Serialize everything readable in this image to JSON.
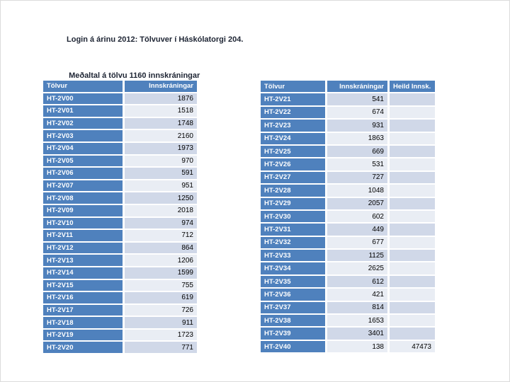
{
  "title": {
    "line1": "Login á árinu 2012: Tölvuver í Háskólatorgi 204.",
    "line2": " Meðaltal á tölvu 1160 innskráningar"
  },
  "colors": {
    "accent_blue": "#4F81BD",
    "band_dark": "#D0D8E8",
    "band_light": "#E9EDF4",
    "header_text": "#FFFFFF",
    "value_text": "#000000",
    "title_text": "#1D2433"
  },
  "left_table": {
    "columns": [
      "Tölvur",
      "Innskráningar"
    ],
    "rows": [
      [
        "HT-2V00",
        "1876"
      ],
      [
        "HT-2V01",
        "1518"
      ],
      [
        "HT-2V02",
        "1748"
      ],
      [
        "HT-2V03",
        "2160"
      ],
      [
        "HT-2V04",
        "1973"
      ],
      [
        "HT-2V05",
        "970"
      ],
      [
        "HT-2V06",
        "591"
      ],
      [
        "HT-2V07",
        "951"
      ],
      [
        "HT-2V08",
        "1250"
      ],
      [
        "HT-2V09",
        "2018"
      ],
      [
        "HT-2V10",
        "974"
      ],
      [
        "HT-2V11",
        "712"
      ],
      [
        "HT-2V12",
        "864"
      ],
      [
        "HT-2V13",
        "1206"
      ],
      [
        "HT-2V14",
        "1599"
      ],
      [
        "HT-2V15",
        "755"
      ],
      [
        "HT-2V16",
        "619"
      ],
      [
        "HT-2V17",
        "726"
      ],
      [
        "HT-2V18",
        "911"
      ],
      [
        "HT-2V19",
        "1723"
      ],
      [
        "HT-2V20",
        "771"
      ]
    ]
  },
  "right_table": {
    "columns": [
      "Tölvur",
      "Innskráningar",
      "Heild Innsk."
    ],
    "rows": [
      [
        "HT-2V21",
        "541",
        ""
      ],
      [
        "HT-2V22",
        "674",
        ""
      ],
      [
        "HT-2V23",
        "931",
        ""
      ],
      [
        "HT-2V24",
        "1863",
        ""
      ],
      [
        "HT-2V25",
        "669",
        ""
      ],
      [
        "HT-2V26",
        "531",
        ""
      ],
      [
        "HT-2V27",
        "727",
        ""
      ],
      [
        "HT-2V28",
        "1048",
        ""
      ],
      [
        "HT-2V29",
        "2057",
        ""
      ],
      [
        "HT-2V30",
        "602",
        ""
      ],
      [
        "HT-2V31",
        "449",
        ""
      ],
      [
        "HT-2V32",
        "677",
        ""
      ],
      [
        "HT-2V33",
        "1125",
        ""
      ],
      [
        "HT-2V34",
        "2625",
        ""
      ],
      [
        "HT-2V35",
        "612",
        ""
      ],
      [
        "HT-2V36",
        "421",
        ""
      ],
      [
        "HT-2V37",
        "814",
        ""
      ],
      [
        "HT-2V38",
        "1653",
        ""
      ],
      [
        "HT-2V39",
        "3401",
        ""
      ],
      [
        "HT-2V40",
        "138",
        "47473"
      ]
    ]
  }
}
